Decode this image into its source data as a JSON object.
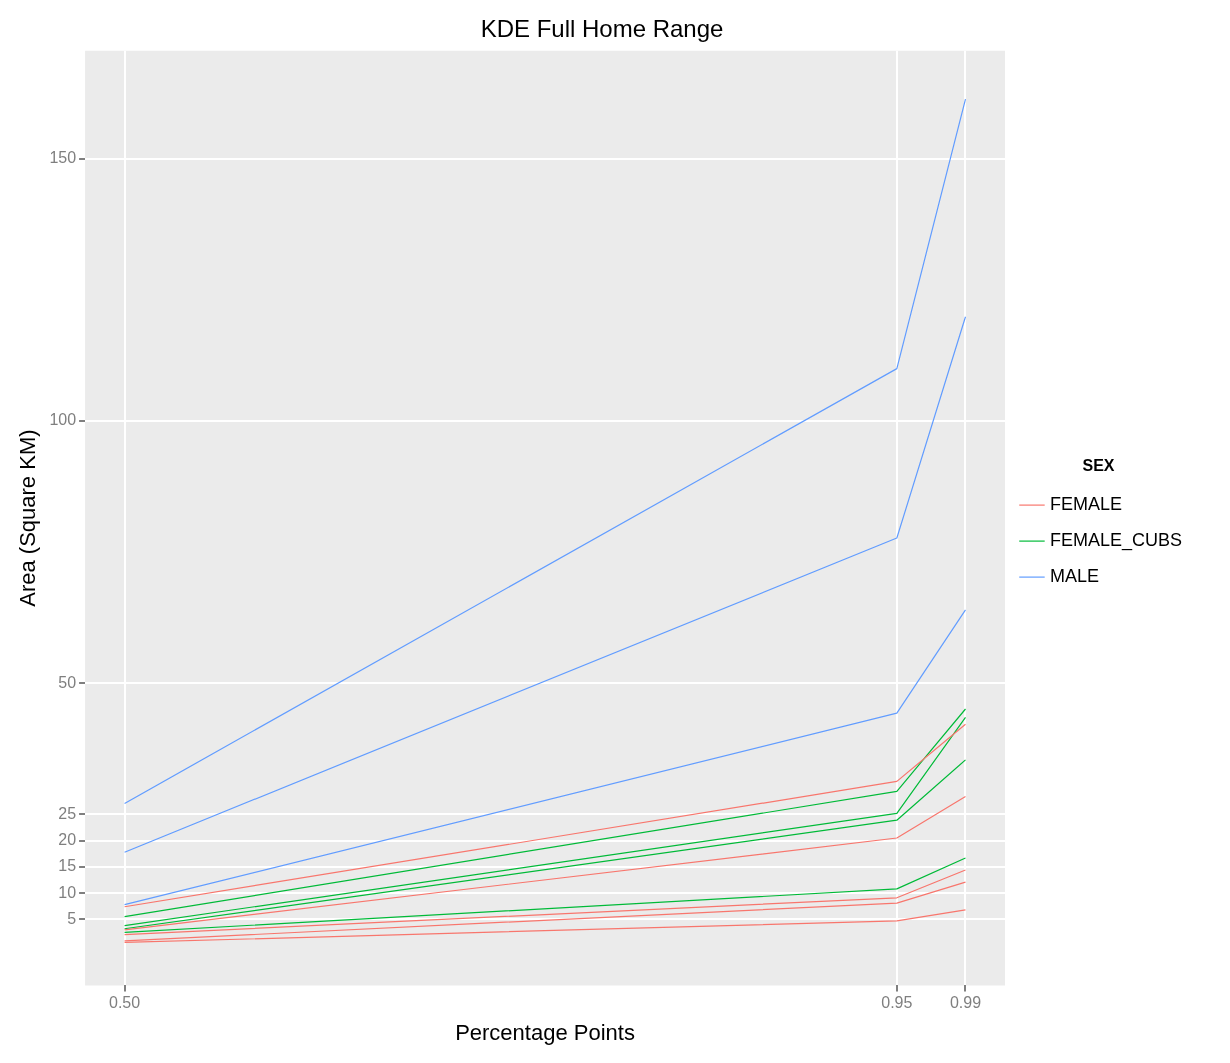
{
  "chart_data": {
    "type": "line",
    "title": "KDE Full Home Range",
    "xlabel": "Percentage Points",
    "ylabel": "Area (Square KM)",
    "legend_title": "SEX",
    "legend": "right",
    "grid": true,
    "marker": "none",
    "line_style": "solid",
    "x": [
      0.5,
      0.95,
      0.99
    ],
    "xlim": [
      0.477,
      1.013
    ],
    "xticks": [
      {
        "value": 0.5,
        "label": "0.50"
      },
      0.95,
      0.99
    ],
    "ylim": [
      -7.6,
      170.6
    ],
    "yticks": [
      5,
      10,
      15,
      20,
      25,
      50,
      100,
      150
    ],
    "series": [
      {
        "name": "FEMALE",
        "color": "#f8766d",
        "values": [
          7.4,
          31.3,
          42.2
        ]
      },
      {
        "color": "#f8766d",
        "values": [
          3.0,
          20.5,
          28.4
        ]
      },
      {
        "color": "#f8766d",
        "values": [
          2.1,
          9.1,
          14.4
        ]
      },
      {
        "color": "#f8766d",
        "values": [
          0.9,
          8.1,
          12.1
        ]
      },
      {
        "color": "#f8766d",
        "values": [
          0.6,
          4.7,
          6.8
        ]
      },
      {
        "name": "FEMALE_CUBS",
        "color": "#00ba38",
        "values": [
          5.5,
          29.4,
          45.1
        ]
      },
      {
        "color": "#00ba38",
        "values": [
          3.8,
          25.2,
          43.5
        ]
      },
      {
        "color": "#00ba38",
        "values": [
          3.2,
          23.9,
          35.4
        ]
      },
      {
        "color": "#00ba38",
        "values": [
          2.5,
          10.8,
          16.7
        ]
      },
      {
        "name": "MALE",
        "color": "#619cff",
        "values": [
          27.1,
          110,
          161.4
        ]
      },
      {
        "color": "#619cff",
        "values": [
          17.8,
          77.7,
          119.9
        ]
      },
      {
        "color": "#619cff",
        "values": [
          7.8,
          44.3,
          64
        ]
      }
    ]
  }
}
